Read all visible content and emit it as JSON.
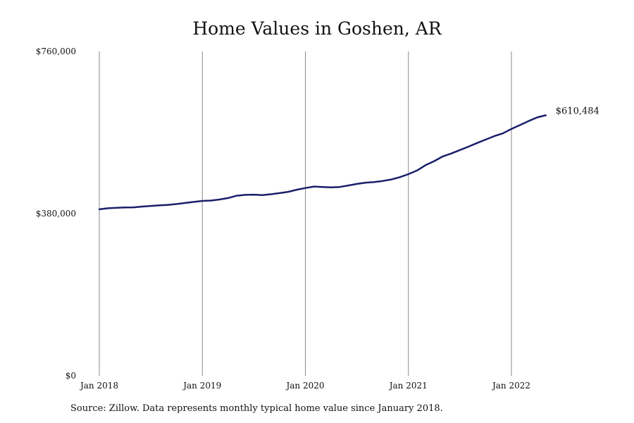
{
  "chart_data": {
    "type": "line",
    "title": "Home Values in Goshen, AR",
    "xlabel": "",
    "ylabel": "",
    "y_ticks": [
      {
        "value": 760000,
        "label": "$760,000"
      },
      {
        "value": 380000,
        "label": "$380,000"
      },
      {
        "value": 0,
        "label": "$0"
      }
    ],
    "ylim": [
      0,
      760000
    ],
    "x_ticks": [
      {
        "value": "2018-01",
        "label": "Jan 2018"
      },
      {
        "value": "2019-01",
        "label": "Jan 2019"
      },
      {
        "value": "2020-01",
        "label": "Jan 2020"
      },
      {
        "value": "2021-01",
        "label": "Jan 2021"
      },
      {
        "value": "2022-01",
        "label": "Jan 2022"
      }
    ],
    "xlim": [
      "2018-01",
      "2022-05"
    ],
    "grid": "vertical",
    "end_label": "$610,484",
    "line_color": "#1a1f6b",
    "series": [
      {
        "x": [
          "2018-01",
          "2018-02",
          "2018-03",
          "2018-04",
          "2018-05",
          "2018-06",
          "2018-07",
          "2018-08",
          "2018-09",
          "2018-10",
          "2018-11",
          "2018-12",
          "2019-01",
          "2019-02",
          "2019-03",
          "2019-04",
          "2019-05",
          "2019-06",
          "2019-07",
          "2019-08",
          "2019-09",
          "2019-10",
          "2019-11",
          "2019-12",
          "2020-01",
          "2020-02",
          "2020-03",
          "2020-04",
          "2020-05",
          "2020-06",
          "2020-07",
          "2020-08",
          "2020-09",
          "2020-10",
          "2020-11",
          "2020-12",
          "2021-01",
          "2021-02",
          "2021-03",
          "2021-04",
          "2021-05",
          "2021-06",
          "2021-07",
          "2021-08",
          "2021-09",
          "2021-10",
          "2021-11",
          "2021-12",
          "2022-01",
          "2022-02",
          "2022-03",
          "2022-04",
          "2022-05"
        ],
        "values": [
          390000,
          392500,
          393500,
          394500,
          394700,
          396500,
          398000,
          399500,
          400500,
          402500,
          405000,
          407500,
          409800,
          410500,
          413000,
          416500,
          422000,
          424000,
          424500,
          423500,
          425500,
          428000,
          431000,
          436000,
          440000,
          443500,
          442500,
          441500,
          442500,
          446000,
          449500,
          452500,
          454000,
          456500,
          460000,
          465500,
          472500,
          481000,
          493500,
          503000,
          514000,
          521000,
          529000,
          537000,
          545500,
          553500,
          561500,
          568000,
          578500,
          587500,
          597000,
          605500,
          610484
        ]
      }
    ]
  },
  "source_note": "Source: Zillow. Data represents monthly typical home value since January 2018."
}
